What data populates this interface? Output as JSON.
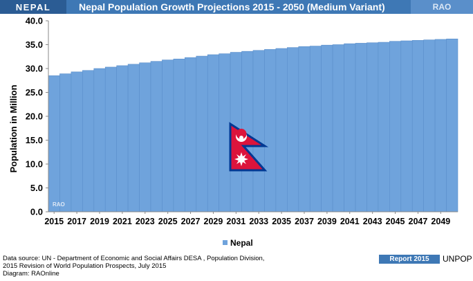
{
  "header": {
    "country": "NEPAL",
    "title": "Nepal  Population Growth Projections 2015 - 2050 (Medium Variant)",
    "brand": "RAO"
  },
  "footer": {
    "source_line1": "Data source: UN -  Department of Economic and Social Affairs DESA , Population Division,",
    "source_line2": "2015 Revision of World Population Prospects, July 2015",
    "diagram": "Diagram: RAOnline",
    "report": "Report 2015",
    "org": "UNPOP"
  },
  "watermark": "RAO",
  "colors": {
    "bar": "#6fa3dc",
    "bar_edge": "#5b8fcb",
    "header": "#3e78b5",
    "flag_red": "#dc143c",
    "flag_blue": "#003893"
  },
  "chart_data": {
    "type": "bar",
    "categories": [
      "2015",
      "2016",
      "2017",
      "2018",
      "2019",
      "2020",
      "2021",
      "2022",
      "2023",
      "2024",
      "2025",
      "2026",
      "2027",
      "2028",
      "2029",
      "2030",
      "2031",
      "2032",
      "2033",
      "2034",
      "2035",
      "2036",
      "2037",
      "2038",
      "2039",
      "2040",
      "2041",
      "2042",
      "2043",
      "2044",
      "2045",
      "2046",
      "2047",
      "2048",
      "2049",
      "2050"
    ],
    "tick_labels": [
      "2015",
      "2017",
      "2019",
      "2021",
      "2023",
      "2025",
      "2027",
      "2029",
      "2031",
      "2033",
      "2035",
      "2037",
      "2039",
      "2041",
      "2043",
      "2045",
      "2047",
      "2049"
    ],
    "series": [
      {
        "name": "Nepal",
        "values": [
          28.5,
          28.9,
          29.3,
          29.6,
          30.0,
          30.3,
          30.6,
          30.9,
          31.2,
          31.5,
          31.8,
          32.0,
          32.3,
          32.6,
          32.9,
          33.1,
          33.4,
          33.6,
          33.8,
          34.0,
          34.2,
          34.4,
          34.6,
          34.7,
          34.9,
          35.0,
          35.2,
          35.3,
          35.4,
          35.5,
          35.7,
          35.8,
          35.9,
          36.0,
          36.1,
          36.2
        ]
      }
    ],
    "xlabel": "",
    "ylabel": "Population in Million",
    "ylim": [
      0,
      40
    ],
    "yticks": [
      "0.0",
      "5.0",
      "10.0",
      "15.0",
      "20.0",
      "25.0",
      "30.0",
      "35.0",
      "40.0"
    ],
    "grid": false,
    "legend": "bottom"
  }
}
